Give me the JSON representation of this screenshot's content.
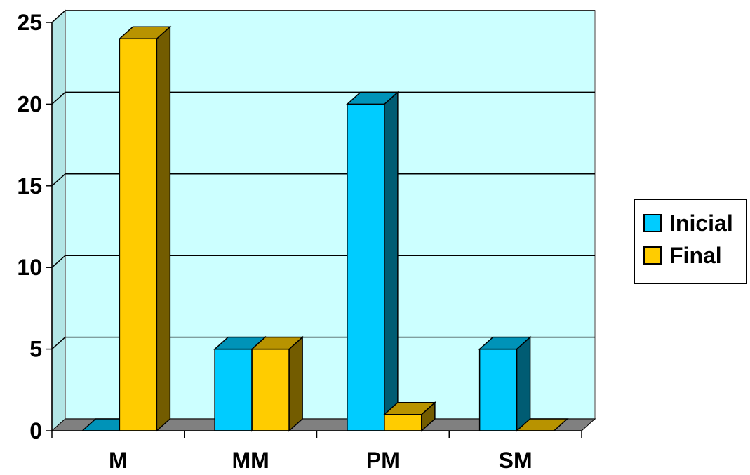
{
  "chart_data": {
    "type": "bar",
    "title": "",
    "xlabel": "",
    "ylabel": "",
    "categories": [
      "M",
      "MM",
      "PM",
      "SM"
    ],
    "series": [
      {
        "name": "Inicial",
        "values": [
          0,
          5,
          20,
          5
        ],
        "color": "#00CCFF"
      },
      {
        "name": "Final",
        "values": [
          24,
          5,
          1,
          0
        ],
        "color": "#FFCC00"
      }
    ],
    "ylim": [
      0,
      25
    ],
    "yticks": [
      "0",
      "5",
      "10",
      "15",
      "20",
      "25"
    ],
    "grid": true,
    "legend_position": "right",
    "background_color": "#CCFFFF"
  }
}
